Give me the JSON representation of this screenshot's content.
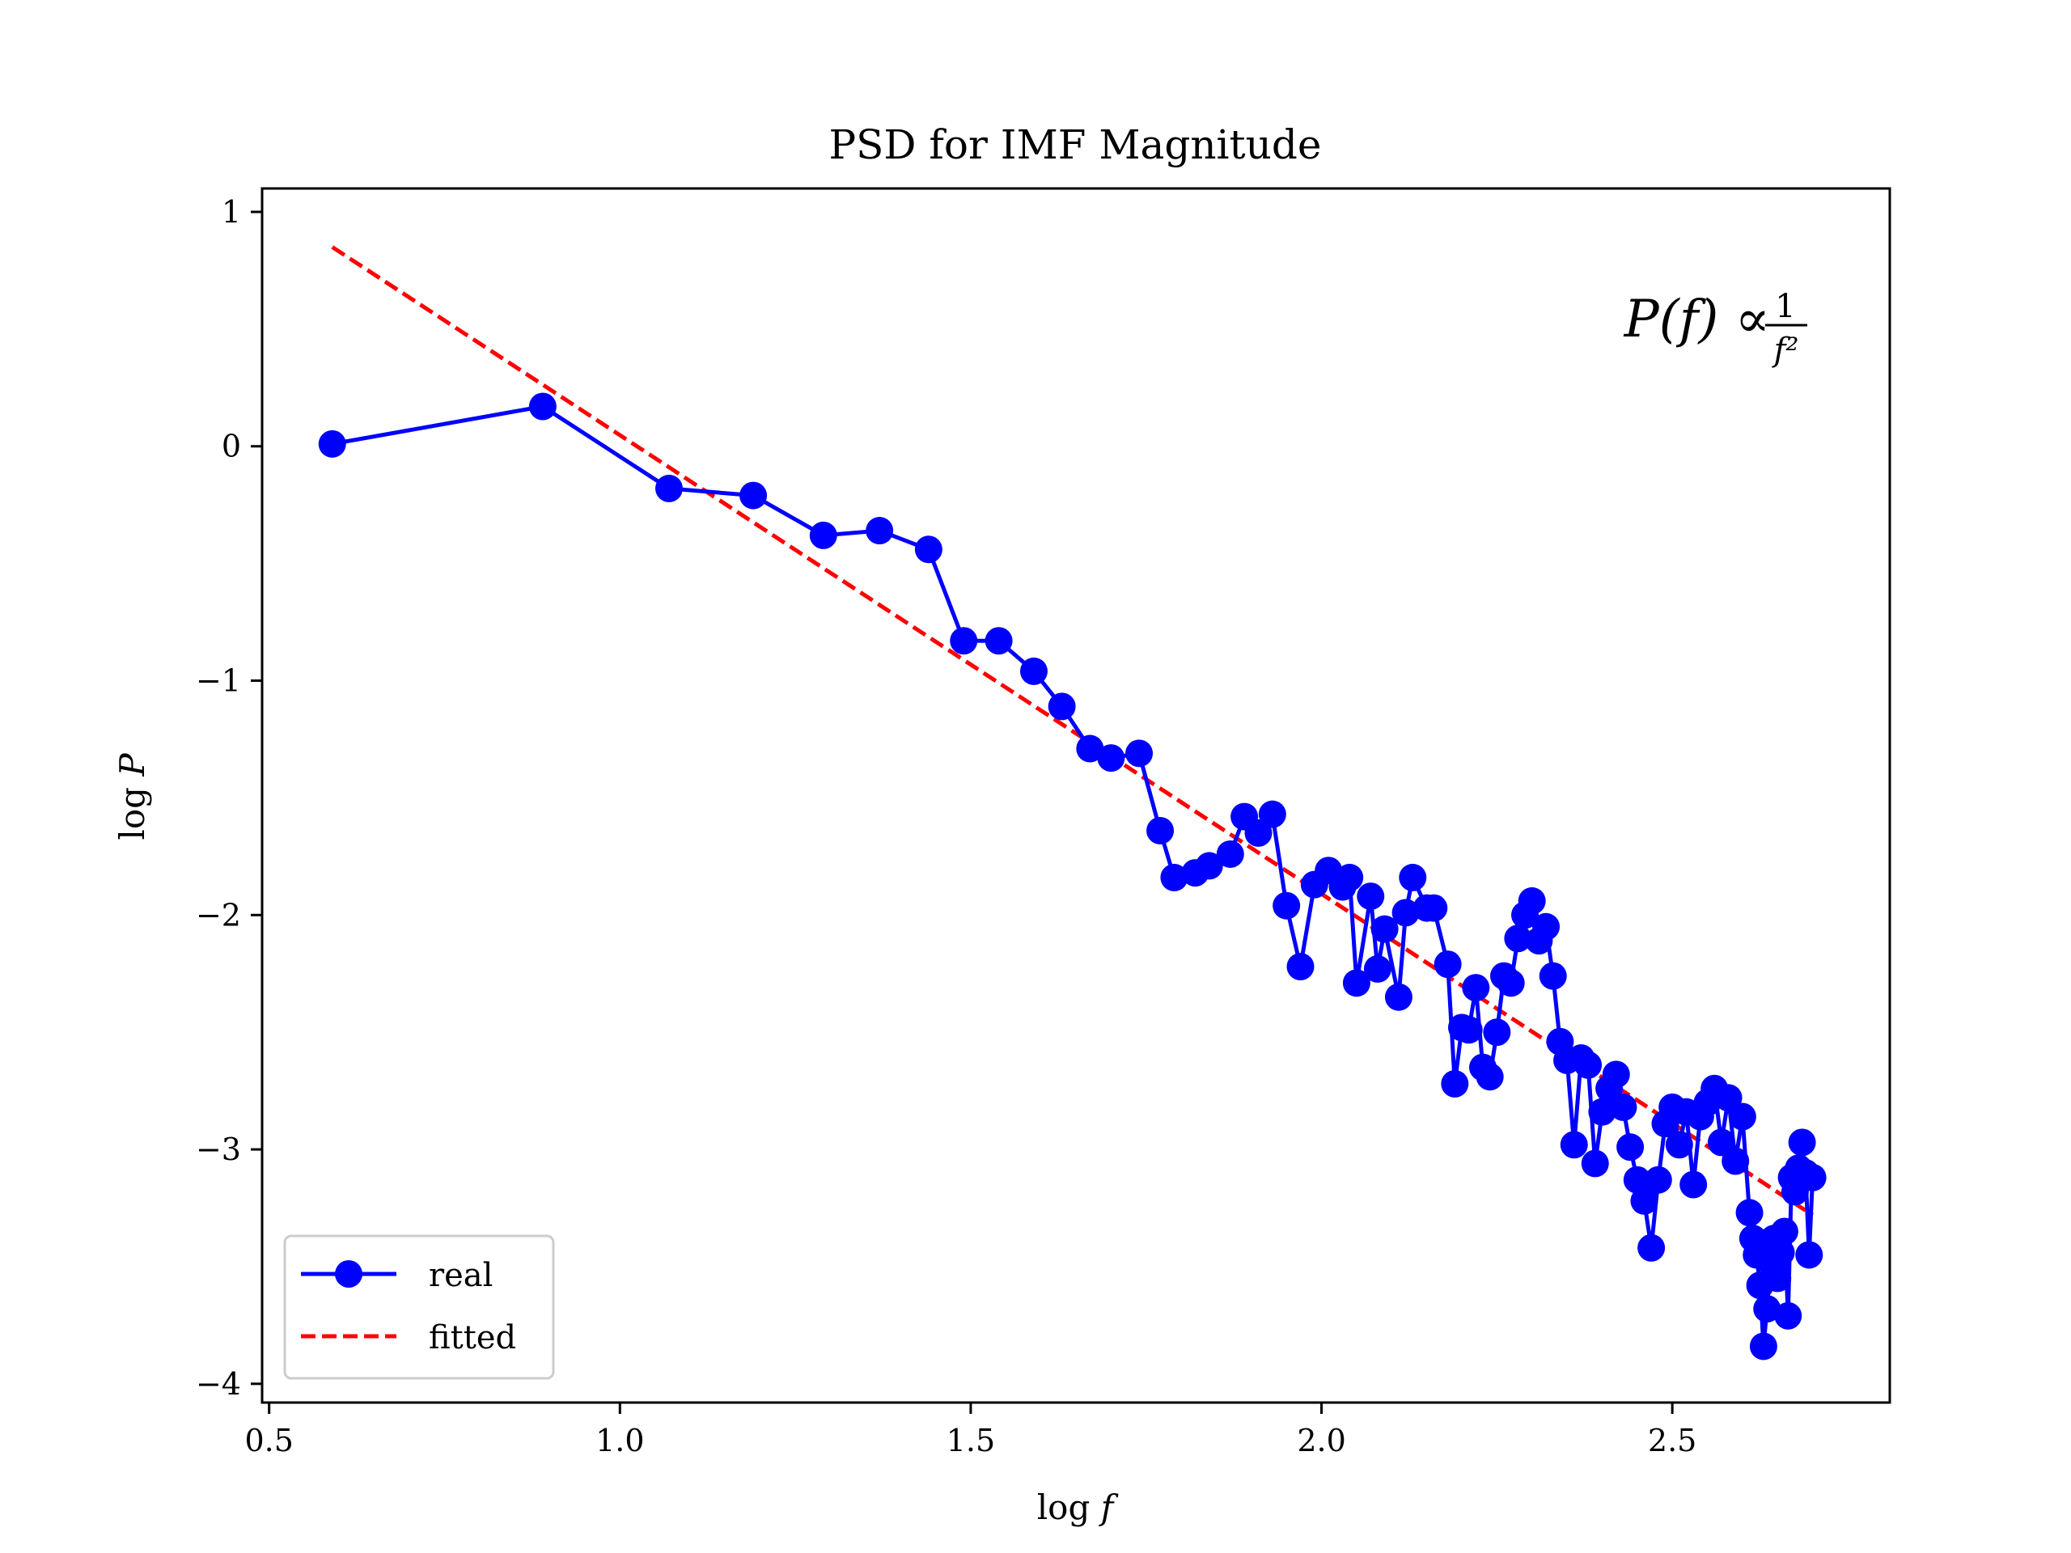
{
  "chart_data": {
    "type": "line",
    "title": "PSD for IMF Magnitude",
    "xlabel": "log f",
    "ylabel": "log P",
    "xlim": [
      0.49,
      2.81
    ],
    "ylim": [
      -4.08,
      1.1
    ],
    "xticks": [
      0.5,
      1.0,
      1.5,
      2.0,
      2.5
    ],
    "xtick_labels": [
      "0.5",
      "1.0",
      "1.5",
      "2.0",
      "2.5"
    ],
    "yticks": [
      1,
      0,
      -1,
      -2,
      -3,
      -4
    ],
    "ytick_labels": [
      "1",
      "0",
      "−1",
      "−2",
      "−3",
      "−4"
    ],
    "annotation": {
      "lhs": "P(f) ∝ ",
      "numerator": "1",
      "denominator": "f²",
      "position": "top-right"
    },
    "legend": {
      "position": "bottom-left"
    },
    "grid": false,
    "series": [
      {
        "name": "real",
        "style": "solid-line-circle-markers",
        "color": "#0000ff",
        "x": [
          0.59,
          0.89,
          1.07,
          1.19,
          1.29,
          1.37,
          1.44,
          1.49,
          1.54,
          1.59,
          1.63,
          1.67,
          1.7,
          1.74,
          1.77,
          1.79,
          1.82,
          1.84,
          1.87,
          1.89,
          1.91,
          1.93,
          1.95,
          1.97,
          1.99,
          2.01,
          2.03,
          2.04,
          2.05,
          2.07,
          2.08,
          2.09,
          2.11,
          2.12,
          2.13,
          2.15,
          2.16,
          2.18,
          2.19,
          2.2,
          2.21,
          2.22,
          2.23,
          2.24,
          2.25,
          2.26,
          2.27,
          2.28,
          2.29,
          2.3,
          2.31,
          2.32,
          2.33,
          2.34,
          2.35,
          2.36,
          2.37,
          2.38,
          2.39,
          2.4,
          2.41,
          2.42,
          2.43,
          2.44,
          2.45,
          2.46,
          2.47,
          2.48,
          2.49,
          2.5,
          2.51,
          2.52,
          2.53,
          2.54,
          2.55,
          2.56,
          2.57,
          2.58,
          2.59,
          2.6,
          2.61,
          2.615,
          2.62,
          2.625,
          2.63,
          2.635,
          2.64,
          2.645,
          2.65,
          2.655,
          2.66,
          2.665,
          2.67,
          2.675,
          2.68,
          2.685,
          2.69,
          2.695,
          2.7
        ],
        "y": [
          0.01,
          0.17,
          -0.18,
          -0.21,
          -0.38,
          -0.36,
          -0.44,
          -0.83,
          -0.83,
          -0.96,
          -1.11,
          -1.29,
          -1.33,
          -1.31,
          -1.64,
          -1.84,
          -1.82,
          -1.79,
          -1.74,
          -1.58,
          -1.65,
          -1.57,
          -1.96,
          -2.22,
          -1.87,
          -1.81,
          -1.88,
          -1.84,
          -2.29,
          -1.92,
          -2.23,
          -2.06,
          -2.35,
          -1.99,
          -1.84,
          -1.97,
          -1.97,
          -2.21,
          -2.72,
          -2.48,
          -2.49,
          -2.31,
          -2.65,
          -2.69,
          -2.5,
          -2.26,
          -2.29,
          -2.1,
          -2.0,
          -1.94,
          -2.11,
          -2.05,
          -2.26,
          -2.54,
          -2.62,
          -2.98,
          -2.61,
          -2.64,
          -3.06,
          -2.84,
          -2.74,
          -2.68,
          -2.82,
          -2.99,
          -3.13,
          -3.22,
          -3.42,
          -3.13,
          -2.89,
          -2.82,
          -2.98,
          -2.84,
          -3.15,
          -2.86,
          -2.8,
          -2.74,
          -2.97,
          -2.78,
          -3.05,
          -2.86,
          -3.27,
          -3.38,
          -3.45,
          -3.58,
          -3.84,
          -3.68,
          -3.48,
          -3.38,
          -3.55,
          -3.44,
          -3.35,
          -3.71,
          -3.12,
          -3.18,
          -3.08,
          -2.97,
          -3.1,
          -3.45,
          -3.12
        ]
      },
      {
        "name": "fitted",
        "style": "dashed-line",
        "color": "#ff0000",
        "x": [
          0.59,
          2.7
        ],
        "y": [
          0.85,
          -3.28
        ]
      }
    ]
  }
}
